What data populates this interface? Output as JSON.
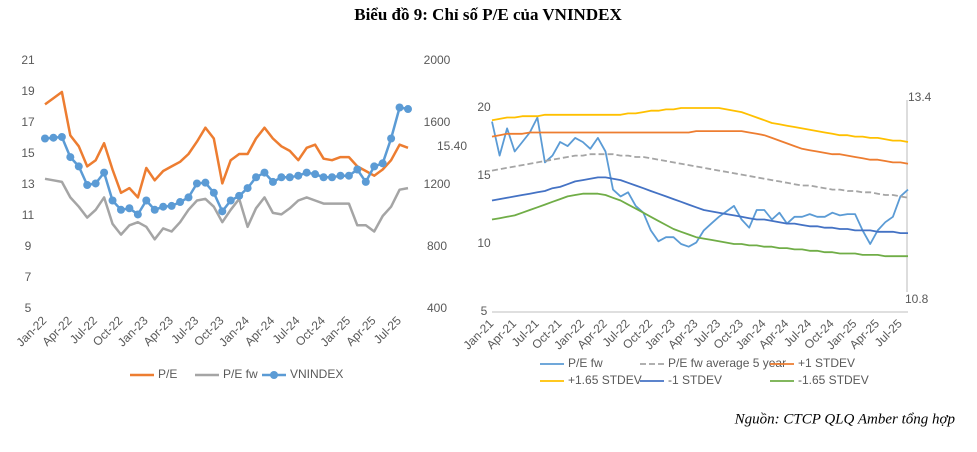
{
  "title": "Biểu đồ 9: Chỉ số P/E của VNINDEX",
  "source": "Nguồn: CTCP QLQ Amber tổng hợp",
  "chart_data": [
    {
      "type": "line",
      "categories": [
        "Jan-22",
        null,
        null,
        "Apr-22",
        null,
        null,
        "Jul-22",
        null,
        null,
        "Oct-22",
        null,
        null,
        "Jan-23",
        null,
        null,
        "Apr-23",
        null,
        null,
        "Jul-23",
        null,
        null,
        "Oct-23",
        null,
        null,
        "Jan-24",
        null,
        null,
        "Apr-24",
        null,
        null,
        "Jul-24",
        null,
        null,
        "Oct-24",
        null,
        null,
        "Jan-25",
        null,
        null,
        "Apr-25",
        null,
        null,
        "Jul-25",
        null
      ],
      "series": [
        {
          "name": "P/E",
          "color": "#ed7d31",
          "values": [
            18.2,
            18.6,
            19.0,
            16.2,
            15.5,
            14.2,
            14.6,
            15.7,
            14.0,
            12.5,
            12.8,
            12.2,
            14.1,
            13.3,
            13.9,
            14.2,
            14.5,
            15.0,
            15.8,
            16.7,
            16.0,
            13.1,
            14.6,
            15.0,
            15.0,
            16.0,
            16.7,
            16.0,
            15.5,
            15.2,
            14.6,
            15.4,
            15.6,
            14.7,
            14.6,
            14.8,
            14.8,
            14.2,
            13.9,
            13.6,
            14.0,
            14.6,
            15.6,
            15.4
          ]
        },
        {
          "name": "P/E fw",
          "color": "#a5a5a5",
          "values": [
            13.4,
            13.3,
            13.2,
            12.2,
            11.6,
            10.9,
            11.4,
            12.2,
            10.5,
            9.8,
            10.4,
            10.6,
            10.3,
            9.5,
            10.2,
            10.0,
            10.6,
            11.4,
            12.0,
            12.1,
            11.6,
            10.6,
            11.4,
            12.1,
            10.3,
            11.5,
            12.2,
            11.2,
            11.1,
            11.5,
            12.0,
            12.2,
            12.0,
            11.8,
            11.8,
            11.8,
            11.8,
            10.4,
            10.4,
            10.0,
            11.0,
            11.6,
            12.7,
            12.8
          ]
        },
        {
          "name": "VNINDEX",
          "color": "#5b9bd5",
          "axis": "y2",
          "markers": true,
          "values": [
            1500,
            1505,
            1510,
            1380,
            1320,
            1200,
            1210,
            1280,
            1100,
            1040,
            1050,
            1010,
            1100,
            1040,
            1060,
            1065,
            1090,
            1120,
            1210,
            1215,
            1150,
            1030,
            1100,
            1130,
            1180,
            1250,
            1280,
            1220,
            1250,
            1250,
            1260,
            1280,
            1270,
            1250,
            1250,
            1260,
            1260,
            1300,
            1220,
            1320,
            1340,
            1500,
            1700,
            1690
          ]
        }
      ],
      "ylim": [
        5,
        21
      ],
      "yticks": [
        5,
        7,
        9,
        11,
        13,
        15,
        17,
        19,
        21
      ],
      "y2lim": [
        400,
        2000
      ],
      "y2ticks": [
        400,
        800,
        1200,
        1600,
        2000
      ],
      "annotations": [
        "15.40"
      ]
    },
    {
      "type": "line",
      "categories": [
        "Jan-21",
        null,
        null,
        "Apr-21",
        null,
        null,
        "Jul-21",
        null,
        null,
        "Oct-21",
        null,
        null,
        "Jan-22",
        null,
        null,
        "Apr-22",
        null,
        null,
        "Jul-22",
        null,
        null,
        "Oct-22",
        null,
        null,
        "Jan-23",
        null,
        null,
        "Apr-23",
        null,
        null,
        "Jul-23",
        null,
        null,
        "Oct-23",
        null,
        null,
        "Jan-24",
        null,
        null,
        "Apr-24",
        null,
        null,
        "Jul-24",
        null,
        null,
        "Oct-24",
        null,
        null,
        "Jan-25",
        null,
        null,
        "Apr-25",
        null,
        null,
        "Jul-25",
        null
      ],
      "series": [
        {
          "name": "P/E fw",
          "color": "#5b9bd5",
          "values": [
            19.0,
            16.5,
            18.5,
            16.8,
            17.5,
            18.2,
            19.3,
            16.0,
            16.5,
            17.5,
            17.2,
            17.8,
            17.5,
            17.0,
            17.8,
            16.8,
            14.0,
            13.5,
            13.8,
            12.8,
            12.3,
            11.0,
            10.2,
            10.5,
            10.5,
            10.0,
            9.8,
            10.1,
            11.0,
            11.5,
            12.0,
            12.4,
            12.8,
            11.8,
            11.2,
            12.5,
            12.5,
            11.8,
            12.3,
            11.5,
            12.0,
            12.0,
            12.2,
            12.0,
            12.0,
            12.3,
            12.1,
            12.2,
            12.2,
            11.0,
            10.0,
            11.0,
            11.6,
            12.0,
            13.5,
            14.0
          ]
        },
        {
          "name": "P/E fw average 5 year",
          "color": "#a5a5a5",
          "dashed": true,
          "values": [
            15.4,
            15.5,
            15.6,
            15.7,
            15.8,
            15.9,
            16.0,
            16.1,
            16.2,
            16.3,
            16.4,
            16.5,
            16.5,
            16.6,
            16.6,
            16.6,
            16.6,
            16.5,
            16.5,
            16.4,
            16.4,
            16.3,
            16.2,
            16.1,
            16.0,
            15.9,
            15.8,
            15.7,
            15.6,
            15.5,
            15.4,
            15.3,
            15.2,
            15.1,
            15.0,
            14.9,
            14.8,
            14.7,
            14.6,
            14.5,
            14.4,
            14.3,
            14.3,
            14.2,
            14.1,
            14.0,
            14.0,
            13.9,
            13.9,
            13.8,
            13.8,
            13.7,
            13.6,
            13.6,
            13.5,
            13.4
          ]
        },
        {
          "name": "+1 STDEV",
          "color": "#ed7d31",
          "values": [
            17.9,
            18.0,
            18.1,
            18.1,
            18.1,
            18.2,
            18.2,
            18.2,
            18.2,
            18.2,
            18.2,
            18.2,
            18.2,
            18.2,
            18.2,
            18.2,
            18.2,
            18.2,
            18.2,
            18.2,
            18.2,
            18.2,
            18.2,
            18.2,
            18.2,
            18.2,
            18.2,
            18.3,
            18.3,
            18.3,
            18.3,
            18.3,
            18.3,
            18.3,
            18.2,
            18.1,
            18.0,
            17.8,
            17.6,
            17.4,
            17.2,
            17.0,
            16.9,
            16.8,
            16.7,
            16.6,
            16.6,
            16.5,
            16.4,
            16.3,
            16.2,
            16.2,
            16.1,
            16.0,
            16.0,
            15.9
          ]
        },
        {
          "name": "+1.65 STDEV",
          "color": "#ffc000",
          "values": [
            19.1,
            19.2,
            19.3,
            19.3,
            19.4,
            19.4,
            19.4,
            19.5,
            19.5,
            19.5,
            19.5,
            19.5,
            19.5,
            19.5,
            19.5,
            19.5,
            19.5,
            19.5,
            19.6,
            19.6,
            19.7,
            19.8,
            19.8,
            19.9,
            19.9,
            20.0,
            20.0,
            20.0,
            20.0,
            20.0,
            20.0,
            19.9,
            19.8,
            19.7,
            19.5,
            19.3,
            19.1,
            18.9,
            18.8,
            18.7,
            18.6,
            18.5,
            18.4,
            18.3,
            18.2,
            18.1,
            18.0,
            18.0,
            17.9,
            17.9,
            17.8,
            17.8,
            17.7,
            17.6,
            17.6,
            17.5
          ]
        },
        {
          "name": "-1 STDEV",
          "color": "#4472c4",
          "values": [
            13.2,
            13.3,
            13.4,
            13.5,
            13.6,
            13.7,
            13.8,
            13.9,
            14.1,
            14.2,
            14.4,
            14.6,
            14.7,
            14.8,
            14.9,
            14.9,
            14.8,
            14.7,
            14.5,
            14.3,
            14.1,
            13.9,
            13.7,
            13.5,
            13.3,
            13.1,
            12.9,
            12.7,
            12.5,
            12.4,
            12.3,
            12.2,
            12.1,
            12.0,
            11.9,
            11.8,
            11.8,
            11.7,
            11.6,
            11.5,
            11.5,
            11.4,
            11.3,
            11.3,
            11.2,
            11.2,
            11.1,
            11.1,
            11.0,
            11.0,
            11.0,
            10.9,
            10.9,
            10.9,
            10.8,
            10.8
          ]
        },
        {
          "name": "-1.65 STDEV",
          "color": "#70ad47",
          "values": [
            11.8,
            11.9,
            12.0,
            12.1,
            12.3,
            12.5,
            12.7,
            12.9,
            13.1,
            13.3,
            13.5,
            13.6,
            13.7,
            13.7,
            13.7,
            13.6,
            13.4,
            13.2,
            12.9,
            12.6,
            12.3,
            12.0,
            11.7,
            11.4,
            11.1,
            10.9,
            10.7,
            10.5,
            10.4,
            10.3,
            10.2,
            10.1,
            10.0,
            10.0,
            9.9,
            9.9,
            9.8,
            9.8,
            9.7,
            9.7,
            9.6,
            9.6,
            9.5,
            9.5,
            9.4,
            9.4,
            9.3,
            9.3,
            9.3,
            9.2,
            9.2,
            9.2,
            9.1,
            9.1,
            9.1,
            9.1
          ]
        }
      ],
      "ylim": [
        5,
        20
      ],
      "yticks": [
        5,
        10,
        15,
        20
      ],
      "annotations": [
        "13.4",
        "10.8"
      ]
    }
  ]
}
